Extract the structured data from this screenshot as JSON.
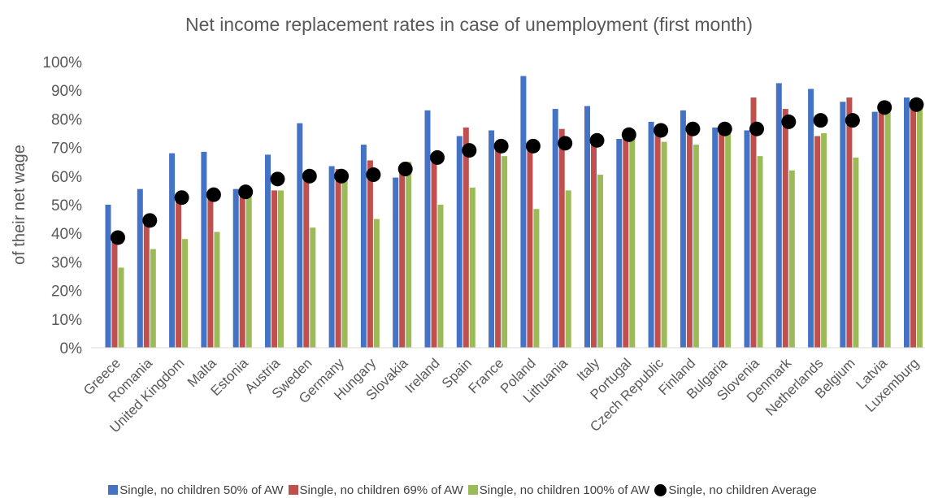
{
  "chart_data": {
    "type": "bar",
    "title": "Net income replacement rates in case of unemployment (first month)",
    "ylabel": "of their net wage",
    "xlabel": "",
    "ylim": [
      0,
      100
    ],
    "yticks": [
      "0%",
      "10%",
      "20%",
      "30%",
      "40%",
      "50%",
      "60%",
      "70%",
      "80%",
      "90%",
      "100%"
    ],
    "categories": [
      "Greece",
      "Romania",
      "United Kingdom",
      "Malta",
      "Estonia",
      "Austria",
      "Sweden",
      "Germany",
      "Hungary",
      "Slovakia",
      "Ireland",
      "Spain",
      "France",
      "Poland",
      "Lithuania",
      "Italy",
      "Portugal",
      "Czech Republic",
      "Finland",
      "Bulgaria",
      "Slovenia",
      "Denmark",
      "Netherlands",
      "Belgium",
      "Latvia",
      "Luxemburg"
    ],
    "series": [
      {
        "name": "Single, no children 50% of AW",
        "kind": "bar",
        "color": "#4472C4",
        "values": [
          50,
          55.5,
          68,
          68.5,
          55.5,
          67.5,
          78.5,
          63.5,
          71,
          59.5,
          83,
          74,
          76,
          95,
          83.5,
          84.5,
          73,
          79,
          83,
          77,
          76,
          92.5,
          90.5,
          86,
          82.5,
          87.5
        ]
      },
      {
        "name": "Single, no children 69% of AW",
        "kind": "bar",
        "color": "#C0504D",
        "values": [
          38.5,
          44.5,
          53,
          53.5,
          55,
          55,
          60,
          62.5,
          65.5,
          62,
          66.5,
          77,
          70,
          70.5,
          76.5,
          72.5,
          74.5,
          76,
          76.5,
          76.5,
          87.5,
          83.5,
          74,
          87.5,
          84,
          85.5
        ]
      },
      {
        "name": "Single, no children 100% of AW",
        "kind": "bar",
        "color": "#9BBB59",
        "values": [
          28,
          34.5,
          38,
          40.5,
          54,
          55,
          42,
          61,
          45,
          65,
          50,
          56,
          67,
          48.5,
          55,
          60.5,
          75.5,
          72,
          71,
          77,
          67,
          62,
          75,
          66.5,
          86,
          85.5
        ]
      },
      {
        "name": "Single, no children Average",
        "kind": "marker",
        "color": "#000000",
        "values": [
          38.5,
          44.5,
          52.5,
          53.5,
          54.5,
          59,
          60,
          60,
          60.5,
          62.5,
          66.5,
          69,
          70.5,
          70.5,
          71.5,
          72.5,
          74.5,
          76,
          76.5,
          76.5,
          76.5,
          79,
          79.5,
          79.5,
          84,
          85
        ]
      }
    ],
    "grid": false,
    "legend_position": "bottom"
  }
}
